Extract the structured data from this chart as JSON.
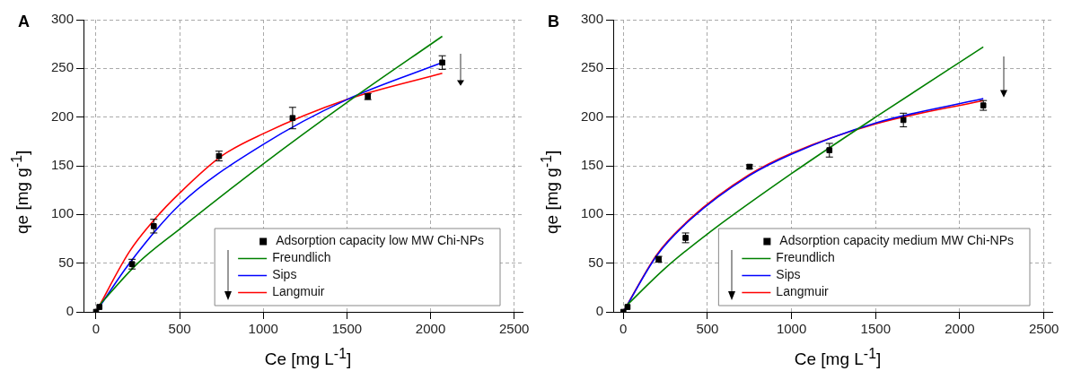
{
  "chart_data": [
    {
      "type": "scatter",
      "title": "A",
      "xlabel": "Ce [mg L$^{-1}$]",
      "ylabel": "qe [mg g$^{-1}$]",
      "xlim": [
        -75,
        2550
      ],
      "ylim": [
        0,
        300
      ],
      "xticks": [
        0,
        500,
        1000,
        1500,
        2000,
        2500
      ],
      "yticks": [
        0,
        50,
        100,
        150,
        200,
        250,
        300
      ],
      "grid": true,
      "legend": "bottom right",
      "series": [
        {
          "name": "Adsorption capacity low MW Chi-NPs",
          "type": "scatter",
          "color": "#000000",
          "marker": "square",
          "x": [
            0,
            20,
            215,
            345,
            735,
            1175,
            1625,
            2070
          ],
          "values": [
            0,
            5,
            49,
            88,
            160,
            199,
            221,
            256
          ],
          "errors": [
            null,
            null,
            5,
            7,
            5,
            11,
            3,
            7
          ]
        },
        {
          "name": "Freundlich",
          "type": "line",
          "color": "#008000",
          "marker": "none",
          "line_style": "solid",
          "x": [
            10,
            250,
            500,
            1000,
            1500,
            2070
          ],
          "values": [
            5,
            50,
            85,
            152,
            215,
            283
          ]
        },
        {
          "name": "Sips",
          "type": "line",
          "color": "#0000ff",
          "marker": "none",
          "line_style": "solid",
          "x": [
            0,
            200,
            500,
            1000,
            1500,
            2070
          ],
          "values": [
            0,
            50,
            110,
            172,
            218,
            256
          ]
        },
        {
          "name": "Langmuir",
          "type": "line",
          "color": "#ff0000",
          "marker": "none",
          "line_style": "solid",
          "x": [
            0,
            200,
            350,
            500,
            750,
            1000,
            1500,
            2070
          ],
          "values": [
            0,
            62,
            95,
            122,
            160,
            183,
            218,
            245
          ]
        }
      ]
    },
    {
      "type": "scatter",
      "title": "B",
      "xlabel": "Ce [mg L$^{-1}$]",
      "ylabel": "qe [mg g$^{-1}$]",
      "xlim": [
        -60,
        2550
      ],
      "ylim": [
        0,
        300
      ],
      "xticks": [
        0,
        500,
        1000,
        1500,
        2000,
        2500
      ],
      "yticks": [
        0,
        50,
        100,
        150,
        200,
        250,
        300
      ],
      "grid": true,
      "legend": "bottom right",
      "series": [
        {
          "name": "Adsorption capacity medium MW Chi-NPs",
          "type": "scatter",
          "color": "#000000",
          "marker": "square",
          "x": [
            0,
            25,
            210,
            370,
            750,
            1225,
            1665,
            2140
          ],
          "values": [
            0,
            5,
            54,
            76,
            149,
            166,
            197,
            212
          ],
          "errors": [
            null,
            null,
            3,
            5,
            2,
            7,
            7,
            5
          ]
        },
        {
          "name": "Freundlich",
          "type": "line",
          "color": "#008000",
          "marker": "none",
          "line_style": "solid",
          "x": [
            10,
            250,
            500,
            1000,
            1500,
            2140
          ],
          "values": [
            5,
            45,
            80,
            142,
            200,
            272
          ]
        },
        {
          "name": "Sips",
          "type": "line",
          "color": "#0000ff",
          "marker": "none",
          "line_style": "solid",
          "x": [
            0,
            200,
            400,
            750,
            1000,
            1500,
            2140
          ],
          "values": [
            0,
            58,
            95,
            140,
            162,
            194,
            219
          ]
        },
        {
          "name": "Langmuir",
          "type": "line",
          "color": "#ff0000",
          "marker": "none",
          "line_style": "solid",
          "x": [
            0,
            200,
            400,
            750,
            1000,
            1500,
            2140
          ],
          "values": [
            0,
            59,
            96,
            141,
            163,
            193,
            217
          ]
        }
      ]
    }
  ]
}
